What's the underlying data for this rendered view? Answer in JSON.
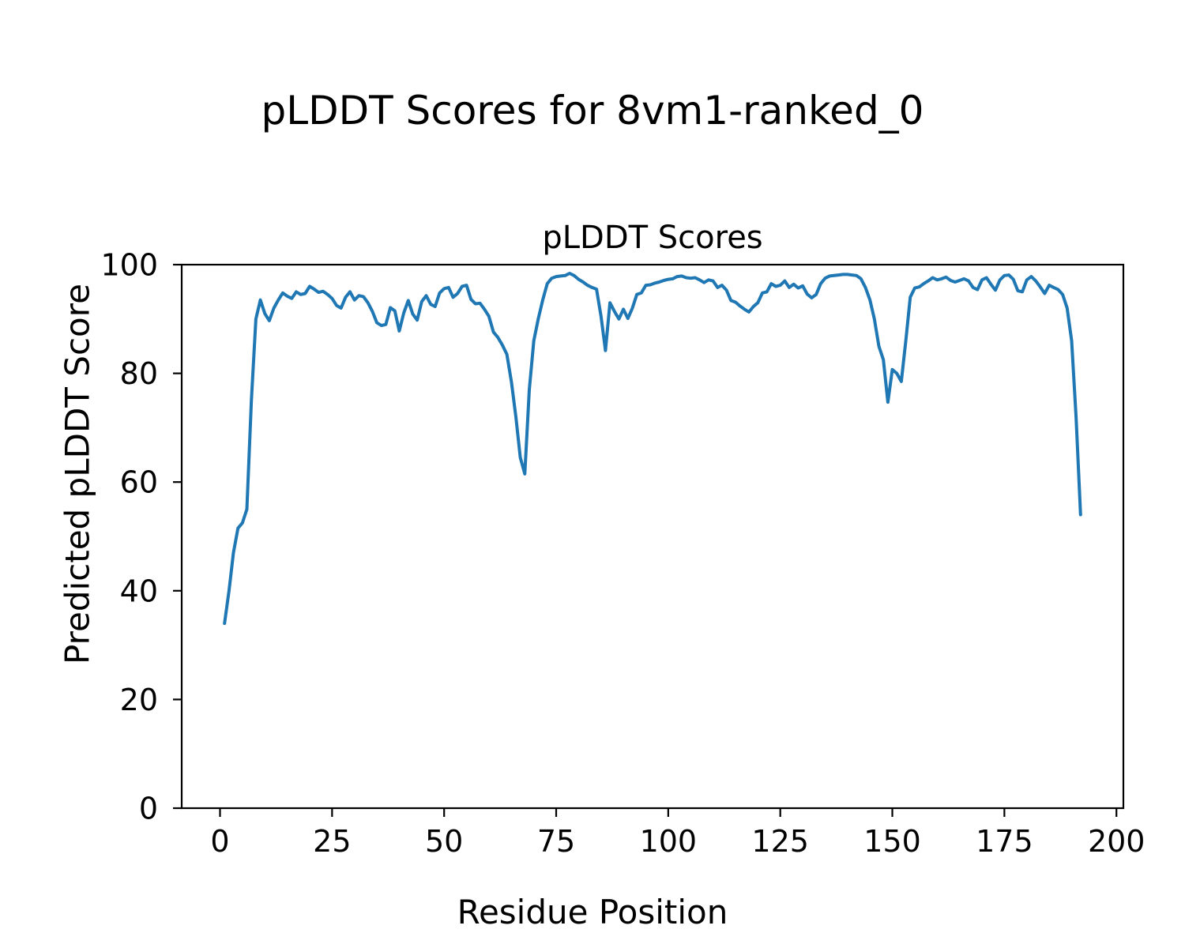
{
  "figure": {
    "suptitle": "pLDDT Scores for 8vm1-ranked_0",
    "axes_title": "pLDDT Scores",
    "xlabel": "Residue Position",
    "ylabel": "Predicted pLDDT Score"
  },
  "chart_data": {
    "type": "line",
    "title": "pLDDT Scores",
    "suptitle": "pLDDT Scores for 8vm1-ranked_0",
    "xlabel": "Residue Position",
    "ylabel": "Predicted pLDDT Score",
    "x_ticks": [
      0,
      25,
      50,
      75,
      100,
      125,
      150,
      175,
      200
    ],
    "y_ticks": [
      0,
      20,
      40,
      60,
      80,
      100
    ],
    "xlim": [
      -8.55,
      201.55
    ],
    "ylim": [
      0,
      100
    ],
    "grid": false,
    "legend": "none",
    "line_color": "#1f77b4",
    "line_width": 4,
    "series": [
      {
        "name": "pLDDT",
        "x_start": 1,
        "x_step": 1,
        "y": [
          34,
          40,
          47,
          51.5,
          52.5,
          55,
          75,
          90,
          93.5,
          91,
          89.7,
          92,
          93.5,
          94.8,
          94.2,
          93.8,
          95,
          94.5,
          94.7,
          96,
          95.5,
          94.9,
          95.1,
          94.5,
          93.8,
          92.5,
          92,
          94,
          95,
          93.5,
          94.3,
          94.1,
          93,
          91.4,
          89.3,
          88.8,
          89,
          92.1,
          91.5,
          87.8,
          91.1,
          93.4,
          90.9,
          89.8,
          93.2,
          94.3,
          92.7,
          92.3,
          94.8,
          95.6,
          95.8,
          94,
          94.7,
          96,
          96.2,
          93.6,
          92.8,
          92.9,
          91.8,
          90.5,
          87.6,
          86.6,
          85.2,
          83.5,
          78.5,
          72,
          64.5,
          61.5,
          77,
          86,
          90,
          93.5,
          96.5,
          97.5,
          97.8,
          97.9,
          98,
          98.4,
          98,
          97.3,
          96.8,
          96.2,
          95.8,
          95.5,
          90.5,
          84.2,
          93,
          91.4,
          90,
          91.8,
          90.1,
          92,
          94.5,
          94.8,
          96.2,
          96.3,
          96.6,
          96.8,
          97.1,
          97.3,
          97.4,
          97.8,
          97.9,
          97.6,
          97.5,
          97.6,
          97.2,
          96.7,
          97.2,
          97,
          95.8,
          96.2,
          95.3,
          93.4,
          93.1,
          92.4,
          91.8,
          91.3,
          92.3,
          93,
          94.8,
          95,
          96.5,
          96,
          96.2,
          97,
          95.8,
          96.4,
          95.7,
          96.1,
          94.6,
          93.9,
          94.5,
          96.5,
          97.5,
          97.9,
          98,
          98.1,
          98.2,
          98.2,
          98.1,
          98,
          97.4,
          95.8,
          93.5,
          90,
          85,
          82.5,
          74.7,
          80.7,
          80,
          78.5,
          86,
          94,
          95.7,
          95.9,
          96.5,
          97,
          97.6,
          97.2,
          97.4,
          97.7,
          97.1,
          96.8,
          97.1,
          97.4,
          97,
          95.8,
          95.4,
          97.2,
          97.6,
          96.4,
          95.3,
          97.2,
          98,
          98.1,
          97.3,
          95.2,
          95,
          97.2,
          97.8,
          97,
          95.9,
          94.7,
          96.2,
          95.8,
          95.4,
          94.5,
          92,
          86,
          72,
          54
        ]
      }
    ]
  }
}
